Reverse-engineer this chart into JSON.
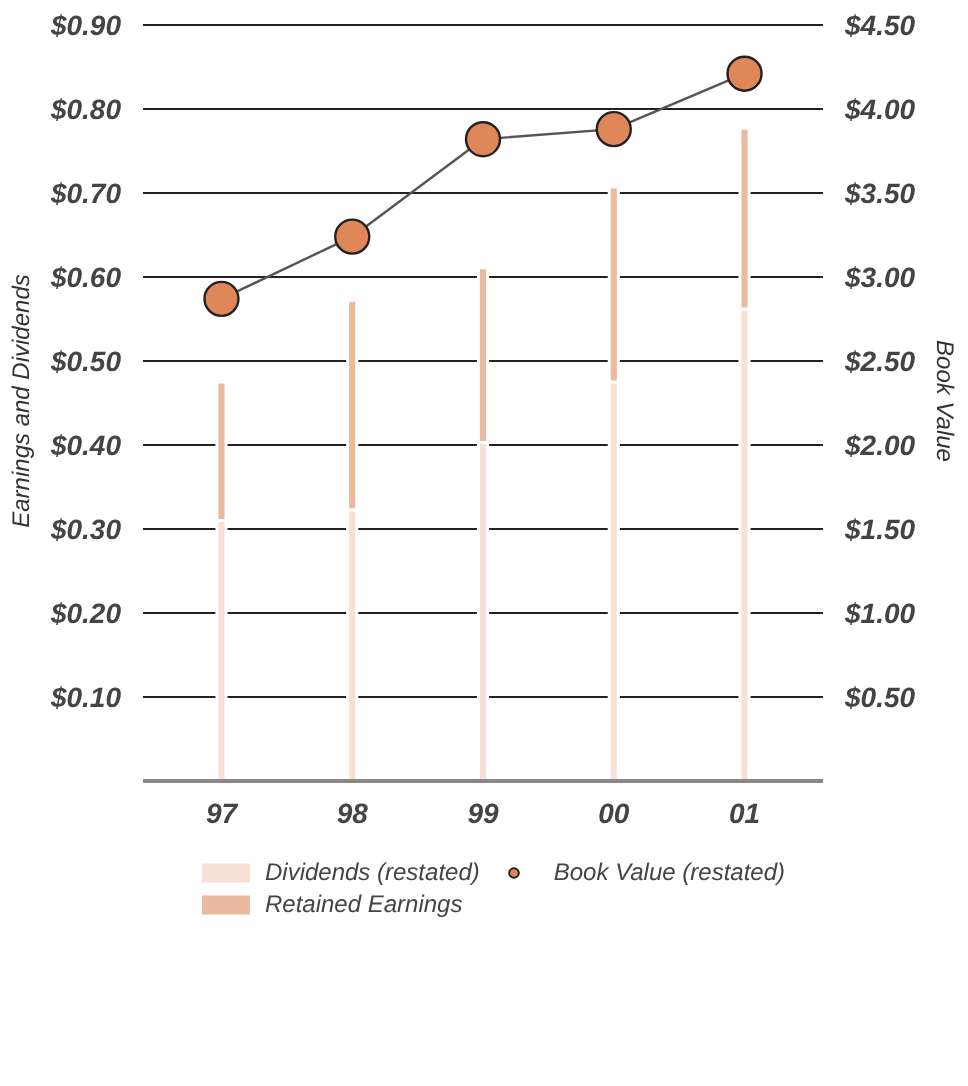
{
  "chart_data": {
    "type": "bar",
    "stacked": true,
    "categories": [
      "97",
      "98",
      "99",
      "00",
      "01"
    ],
    "ylabel": "Earnings and Dividends",
    "y2label": "Book Value",
    "ylim": [
      0,
      0.9
    ],
    "yticks": [
      {
        "value": 0.1,
        "label": "$0.10"
      },
      {
        "value": 0.2,
        "label": "$0.20"
      },
      {
        "value": 0.3,
        "label": "$0.30"
      },
      {
        "value": 0.4,
        "label": "$0.40"
      },
      {
        "value": 0.5,
        "label": "$0.50"
      },
      {
        "value": 0.6,
        "label": "$0.60"
      },
      {
        "value": 0.7,
        "label": "$0.70"
      },
      {
        "value": 0.8,
        "label": "$0.80"
      },
      {
        "value": 0.9,
        "label": "$0.90"
      }
    ],
    "y2lim": [
      0,
      4.5
    ],
    "y2ticks": [
      {
        "value": 0.5,
        "label": "$0.50"
      },
      {
        "value": 1.0,
        "label": "$1.00"
      },
      {
        "value": 1.5,
        "label": "$1.50"
      },
      {
        "value": 2.0,
        "label": "$2.00"
      },
      {
        "value": 2.5,
        "label": "$2.50"
      },
      {
        "value": 3.0,
        "label": "$3.00"
      },
      {
        "value": 3.5,
        "label": "$3.50"
      },
      {
        "value": 4.0,
        "label": "$4.00"
      },
      {
        "value": 4.5,
        "label": "$4.50"
      }
    ],
    "grid": "y",
    "legend": "bottom",
    "series": [
      {
        "name": "Dividends (restated)",
        "color": "#f8e0d5",
        "values": [
          0.31,
          0.323,
          0.403,
          0.475,
          0.562
        ]
      },
      {
        "name": "Retained Earnings",
        "color": "#ebb9a0",
        "values": [
          0.165,
          0.249,
          0.208,
          0.232,
          0.215
        ]
      },
      {
        "name": "Book Value (restated)",
        "type": "line",
        "axis": "y2",
        "marker": "circle",
        "color": "#e0875a",
        "values": [
          2.87,
          3.24,
          3.82,
          3.88,
          4.21
        ]
      }
    ]
  }
}
